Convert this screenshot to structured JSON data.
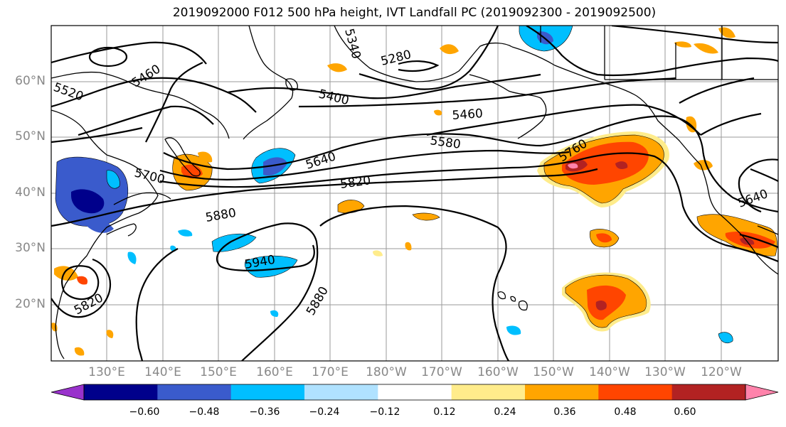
{
  "title": "2019092000 F012 500 hPa height, IVT Landfall PC (2019092300 - 2019092500)",
  "latitude_labels": [
    "60°N",
    "50°N",
    "40°N",
    "30°N",
    "20°N"
  ],
  "longitude_labels": [
    "130°E",
    "140°E",
    "150°E",
    "160°E",
    "170°E",
    "180°W",
    "170°W",
    "160°W",
    "150°W",
    "140°W",
    "130°W",
    "120°W"
  ],
  "contour_labels": [
    "5460",
    "5400",
    "5280",
    "5460",
    "5580",
    "5640",
    "5700",
    "5820",
    "5880",
    "5940",
    "5880",
    "5820",
    "5760",
    "5640",
    "5340",
    "5520"
  ],
  "colorbar": {
    "ticks": [
      "−0.60",
      "−0.48",
      "−0.36",
      "−0.24",
      "−0.12",
      "0.12",
      "0.24",
      "0.36",
      "0.48",
      "0.60"
    ],
    "colors": [
      "#9932CC",
      "#00008B",
      "#3A5BCC",
      "#00BFFF",
      "#B0E2FF",
      "#FFFFFF",
      "#FFEC8B",
      "#FFA500",
      "#FF4500",
      "#B22222",
      "#FF83AB"
    ]
  }
}
